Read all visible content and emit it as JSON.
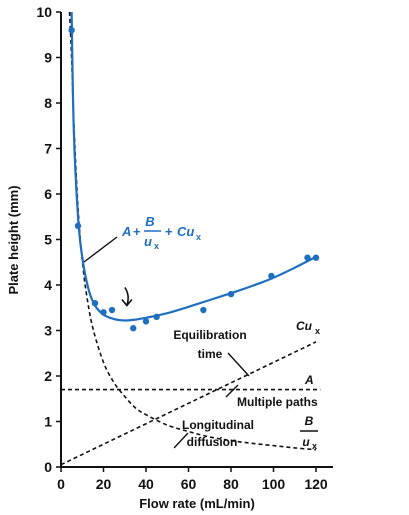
{
  "chart_data": {
    "type": "scatter",
    "xlabel": "Flow rate (mL/min)",
    "ylabel": "Plate height (mm)",
    "xlim": [
      0,
      125
    ],
    "ylim": [
      0,
      10
    ],
    "xticks": [
      0,
      20,
      40,
      60,
      80,
      100,
      120
    ],
    "yticks": [
      0,
      1,
      2,
      3,
      4,
      5,
      6,
      7,
      8,
      9,
      10
    ],
    "grid": false,
    "colors": {
      "data": "#1f6fbf",
      "terms": "#111111"
    },
    "points": {
      "x": [
        5,
        8,
        16,
        20,
        24,
        34,
        40,
        45,
        67,
        80,
        99,
        116,
        120
      ],
      "y": [
        9.6,
        5.3,
        3.6,
        3.4,
        3.45,
        3.05,
        3.2,
        3.3,
        3.45,
        3.8,
        4.2,
        4.6,
        4.6
      ]
    },
    "fit_curve": {
      "x": [
        5,
        6,
        8,
        10,
        13,
        16,
        20,
        25,
        30,
        35,
        40,
        50,
        60,
        70,
        80,
        90,
        100,
        110,
        120
      ],
      "y": [
        10.0,
        7.4,
        5.5,
        4.6,
        3.9,
        3.55,
        3.35,
        3.25,
        3.22,
        3.24,
        3.28,
        3.38,
        3.52,
        3.67,
        3.82,
        3.98,
        4.16,
        4.38,
        4.62
      ]
    },
    "terms": {
      "longitudinal": {
        "x": [
          4,
          5,
          6,
          8,
          10,
          12,
          15,
          20,
          25,
          30,
          35,
          40,
          50,
          60,
          70,
          80,
          90,
          100,
          110,
          120
        ],
        "y": [
          10.0,
          9.0,
          7.6,
          5.7,
          4.55,
          3.8,
          3.05,
          2.3,
          1.85,
          1.55,
          1.3,
          1.15,
          0.92,
          0.78,
          0.66,
          0.58,
          0.52,
          0.47,
          0.42,
          0.38
        ]
      },
      "multiple_paths": {
        "x": [
          0,
          122
        ],
        "y": [
          1.7,
          1.7
        ]
      },
      "equilibration": {
        "x": [
          0,
          120
        ],
        "y": [
          0.05,
          2.75
        ]
      }
    },
    "arrow": {
      "x": 31,
      "y": 3.55
    },
    "annotations": {
      "fit_equation": {
        "a": "A",
        "plus1": "+",
        "b_num": "B",
        "b_den": "u",
        "b_den_sub": "x",
        "plus2": "+",
        "c": "Cu",
        "c_sub": "x"
      },
      "equilibration_label": [
        "Equilibration",
        "time"
      ],
      "equilibration_term": {
        "main": "Cu",
        "sub": "x"
      },
      "multiple_label": "Multiple paths",
      "multiple_term": "A",
      "longitudinal_label": [
        "Longitudinal",
        "diffusion"
      ],
      "longitudinal_term": {
        "num": "B",
        "den": "u",
        "den_sub": "x"
      }
    }
  }
}
